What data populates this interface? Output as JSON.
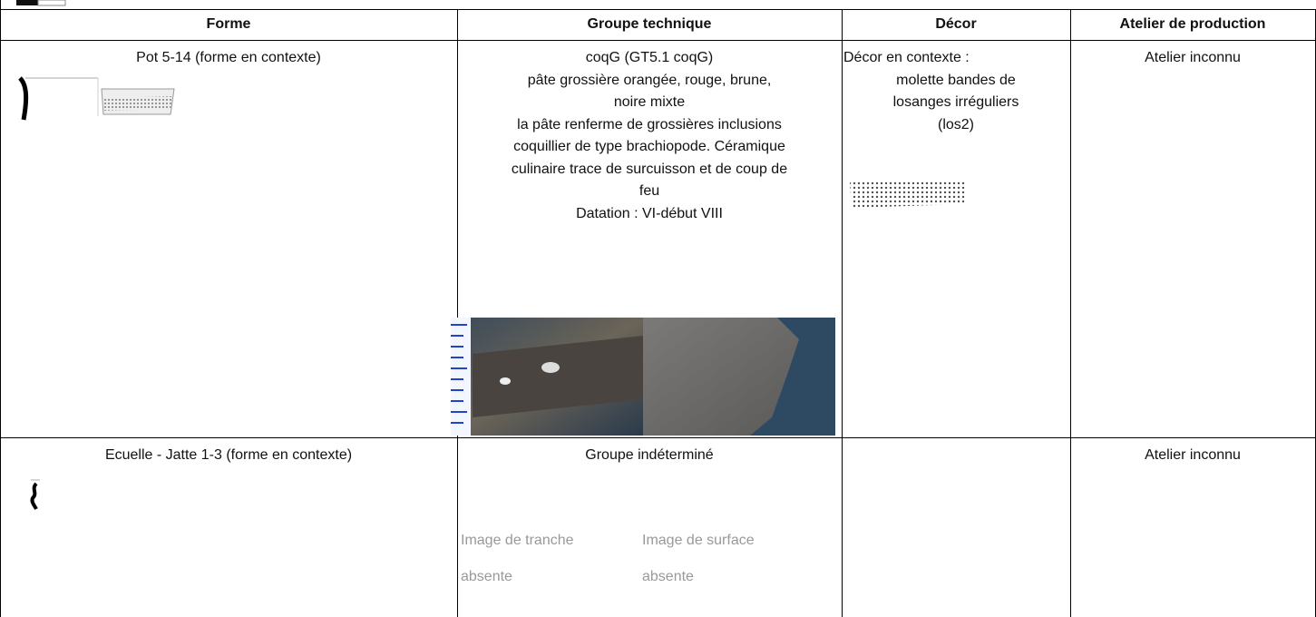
{
  "table": {
    "headers": [
      "Forme",
      "Groupe technique",
      "Décor",
      "Atelier de production"
    ],
    "rows": [
      {
        "forme": "Pot 5-14 (forme  en contexte)",
        "groupe": [
          "coqG (GT5.1 coqG)",
          "pâte grossière orangée, rouge, brune,",
          "noire mixte",
          "la pâte renferme de grossières inclusions",
          "coquillier de type brachiopode. Céramique",
          "culinaire trace de surcuisson et de coup de",
          "feu",
          "Datation : VI-début VIII"
        ],
        "decor_label": "Décor en contexte :",
        "decor": [
          "molette bandes de",
          "losanges irréguliers",
          "(los2)"
        ],
        "atelier": "Atelier inconnu"
      },
      {
        "forme": "Ecuelle - Jatte 1-3 (forme  en contexte)",
        "groupe": [
          "Groupe indéterminé"
        ],
        "missing_images": [
          "Image de tranche absente",
          "Image de surface absente"
        ],
        "atelier": "Atelier inconnu"
      }
    ]
  }
}
